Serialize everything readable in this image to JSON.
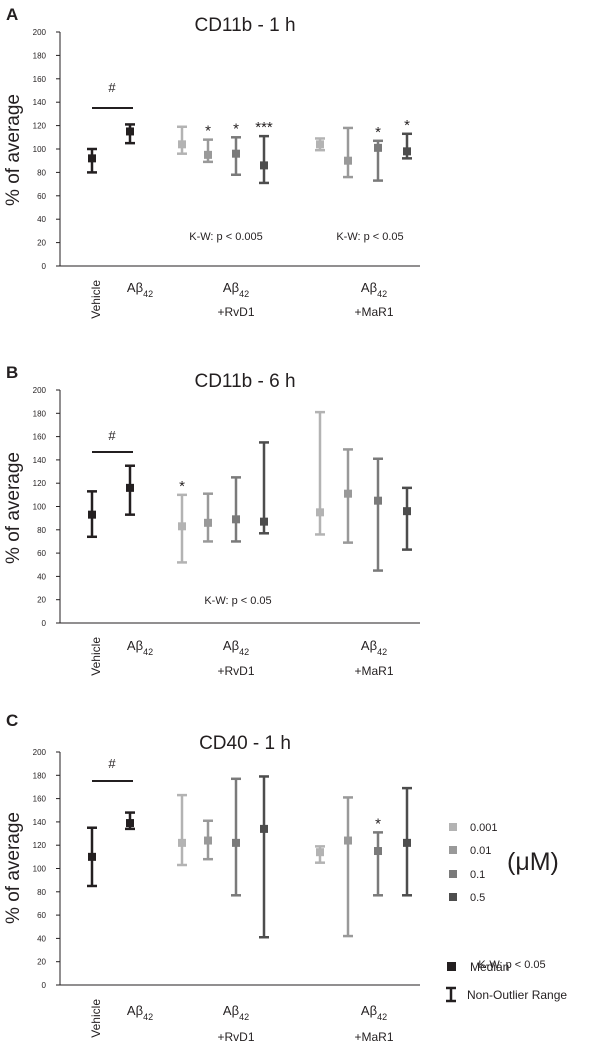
{
  "legend": {
    "concentrations": [
      "0.001",
      "0.01",
      "0.1",
      "0.5"
    ],
    "unit": "(μM)",
    "median_label": "Median",
    "range_label": "Non-Outlier Range"
  },
  "colors": {
    "vehicle": "#231f20",
    "abeta": "#231f20",
    "dose": [
      "#b3b3b3",
      "#999999",
      "#7a7a7a",
      "#4d4d4d"
    ]
  },
  "chart_data": [
    {
      "panel_letter": "A",
      "title": "CD11b - 1 h",
      "type": "scatter",
      "ylabel": "% of average",
      "ylim": [
        0,
        200
      ],
      "yticks": [
        0,
        20,
        40,
        60,
        80,
        100,
        120,
        140,
        160,
        180,
        200
      ],
      "groups": [
        "Vehicle",
        "Aβ42",
        "Aβ42 +RvD1",
        "Aβ42 +MaR1"
      ],
      "points": [
        {
          "group": "Vehicle",
          "dose": null,
          "median": 92,
          "low": 80,
          "high": 100,
          "mark": ""
        },
        {
          "group": "Aβ42",
          "dose": null,
          "median": 115,
          "low": 105,
          "high": 121,
          "mark": ""
        },
        {
          "group": "Aβ42 +RvD1",
          "dose": "0.001",
          "median": 104,
          "low": 96,
          "high": 119,
          "mark": ""
        },
        {
          "group": "Aβ42 +RvD1",
          "dose": "0.01",
          "median": 95,
          "low": 89,
          "high": 108,
          "mark": "*"
        },
        {
          "group": "Aβ42 +RvD1",
          "dose": "0.1",
          "median": 96,
          "low": 78,
          "high": 110,
          "mark": "*"
        },
        {
          "group": "Aβ42 +RvD1",
          "dose": "0.5",
          "median": 86,
          "low": 71,
          "high": 111,
          "mark": "***"
        },
        {
          "group": "Aβ42 +MaR1",
          "dose": "0.001",
          "median": 104,
          "low": 99,
          "high": 109,
          "mark": ""
        },
        {
          "group": "Aβ42 +MaR1",
          "dose": "0.01",
          "median": 90,
          "low": 76,
          "high": 118,
          "mark": ""
        },
        {
          "group": "Aβ42 +MaR1",
          "dose": "0.1",
          "median": 101,
          "low": 73,
          "high": 107,
          "mark": "*"
        },
        {
          "group": "Aβ42 +MaR1",
          "dose": "0.5",
          "median": 98,
          "low": 92,
          "high": 113,
          "mark": "*"
        }
      ],
      "significance": "#",
      "stats": [
        "K-W: p < 0.005",
        "K-W: p < 0.05"
      ]
    },
    {
      "panel_letter": "B",
      "title": "CD11b - 6 h",
      "type": "scatter",
      "ylabel": "% of average",
      "ylim": [
        0,
        200
      ],
      "yticks": [
        0,
        20,
        40,
        60,
        80,
        100,
        120,
        140,
        160,
        180,
        200
      ],
      "groups": [
        "Vehicle",
        "Aβ42",
        "Aβ42 +RvD1",
        "Aβ42 +MaR1"
      ],
      "points": [
        {
          "group": "Vehicle",
          "dose": null,
          "median": 93,
          "low": 74,
          "high": 113,
          "mark": ""
        },
        {
          "group": "Aβ42",
          "dose": null,
          "median": 116,
          "low": 93,
          "high": 135,
          "mark": ""
        },
        {
          "group": "Aβ42 +RvD1",
          "dose": "0.001",
          "median": 83,
          "low": 52,
          "high": 110,
          "mark": "*"
        },
        {
          "group": "Aβ42 +RvD1",
          "dose": "0.01",
          "median": 86,
          "low": 70,
          "high": 111,
          "mark": ""
        },
        {
          "group": "Aβ42 +RvD1",
          "dose": "0.1",
          "median": 89,
          "low": 70,
          "high": 125,
          "mark": ""
        },
        {
          "group": "Aβ42 +RvD1",
          "dose": "0.5",
          "median": 87,
          "low": 77,
          "high": 155,
          "mark": ""
        },
        {
          "group": "Aβ42 +MaR1",
          "dose": "0.001",
          "median": 95,
          "low": 76,
          "high": 181,
          "mark": ""
        },
        {
          "group": "Aβ42 +MaR1",
          "dose": "0.01",
          "median": 111,
          "low": 69,
          "high": 149,
          "mark": ""
        },
        {
          "group": "Aβ42 +MaR1",
          "dose": "0.1",
          "median": 105,
          "low": 45,
          "high": 141,
          "mark": ""
        },
        {
          "group": "Aβ42 +MaR1",
          "dose": "0.5",
          "median": 96,
          "low": 63,
          "high": 116,
          "mark": ""
        }
      ],
      "significance": "#",
      "stats": [
        "K-W: p < 0.05"
      ]
    },
    {
      "panel_letter": "C",
      "title": "CD40 - 1 h",
      "type": "scatter",
      "ylabel": "% of average",
      "ylim": [
        0,
        200
      ],
      "yticks": [
        0,
        20,
        40,
        60,
        80,
        100,
        120,
        140,
        160,
        180,
        200
      ],
      "groups": [
        "Vehicle",
        "Aβ42",
        "Aβ42 +RvD1",
        "Aβ42 +MaR1"
      ],
      "points": [
        {
          "group": "Vehicle",
          "dose": null,
          "median": 110,
          "low": 85,
          "high": 135,
          "mark": ""
        },
        {
          "group": "Aβ42",
          "dose": null,
          "median": 139,
          "low": 134,
          "high": 148,
          "mark": ""
        },
        {
          "group": "Aβ42 +RvD1",
          "dose": "0.001",
          "median": 122,
          "low": 103,
          "high": 163,
          "mark": ""
        },
        {
          "group": "Aβ42 +RvD1",
          "dose": "0.01",
          "median": 124,
          "low": 108,
          "high": 141,
          "mark": ""
        },
        {
          "group": "Aβ42 +RvD1",
          "dose": "0.1",
          "median": 122,
          "low": 77,
          "high": 177,
          "mark": ""
        },
        {
          "group": "Aβ42 +RvD1",
          "dose": "0.5",
          "median": 134,
          "low": 41,
          "high": 179,
          "mark": ""
        },
        {
          "group": "Aβ42 +MaR1",
          "dose": "0.001",
          "median": 114,
          "low": 105,
          "high": 119,
          "mark": ""
        },
        {
          "group": "Aβ42 +MaR1",
          "dose": "0.01",
          "median": 124,
          "low": 42,
          "high": 161,
          "mark": ""
        },
        {
          "group": "Aβ42 +MaR1",
          "dose": "0.1",
          "median": 115,
          "low": 77,
          "high": 131,
          "mark": "*"
        },
        {
          "group": "Aβ42 +MaR1",
          "dose": "0.5",
          "median": 122,
          "low": 77,
          "high": 169,
          "mark": ""
        }
      ],
      "significance": "#",
      "stats": [
        "K-W: p < 0.05"
      ]
    }
  ]
}
